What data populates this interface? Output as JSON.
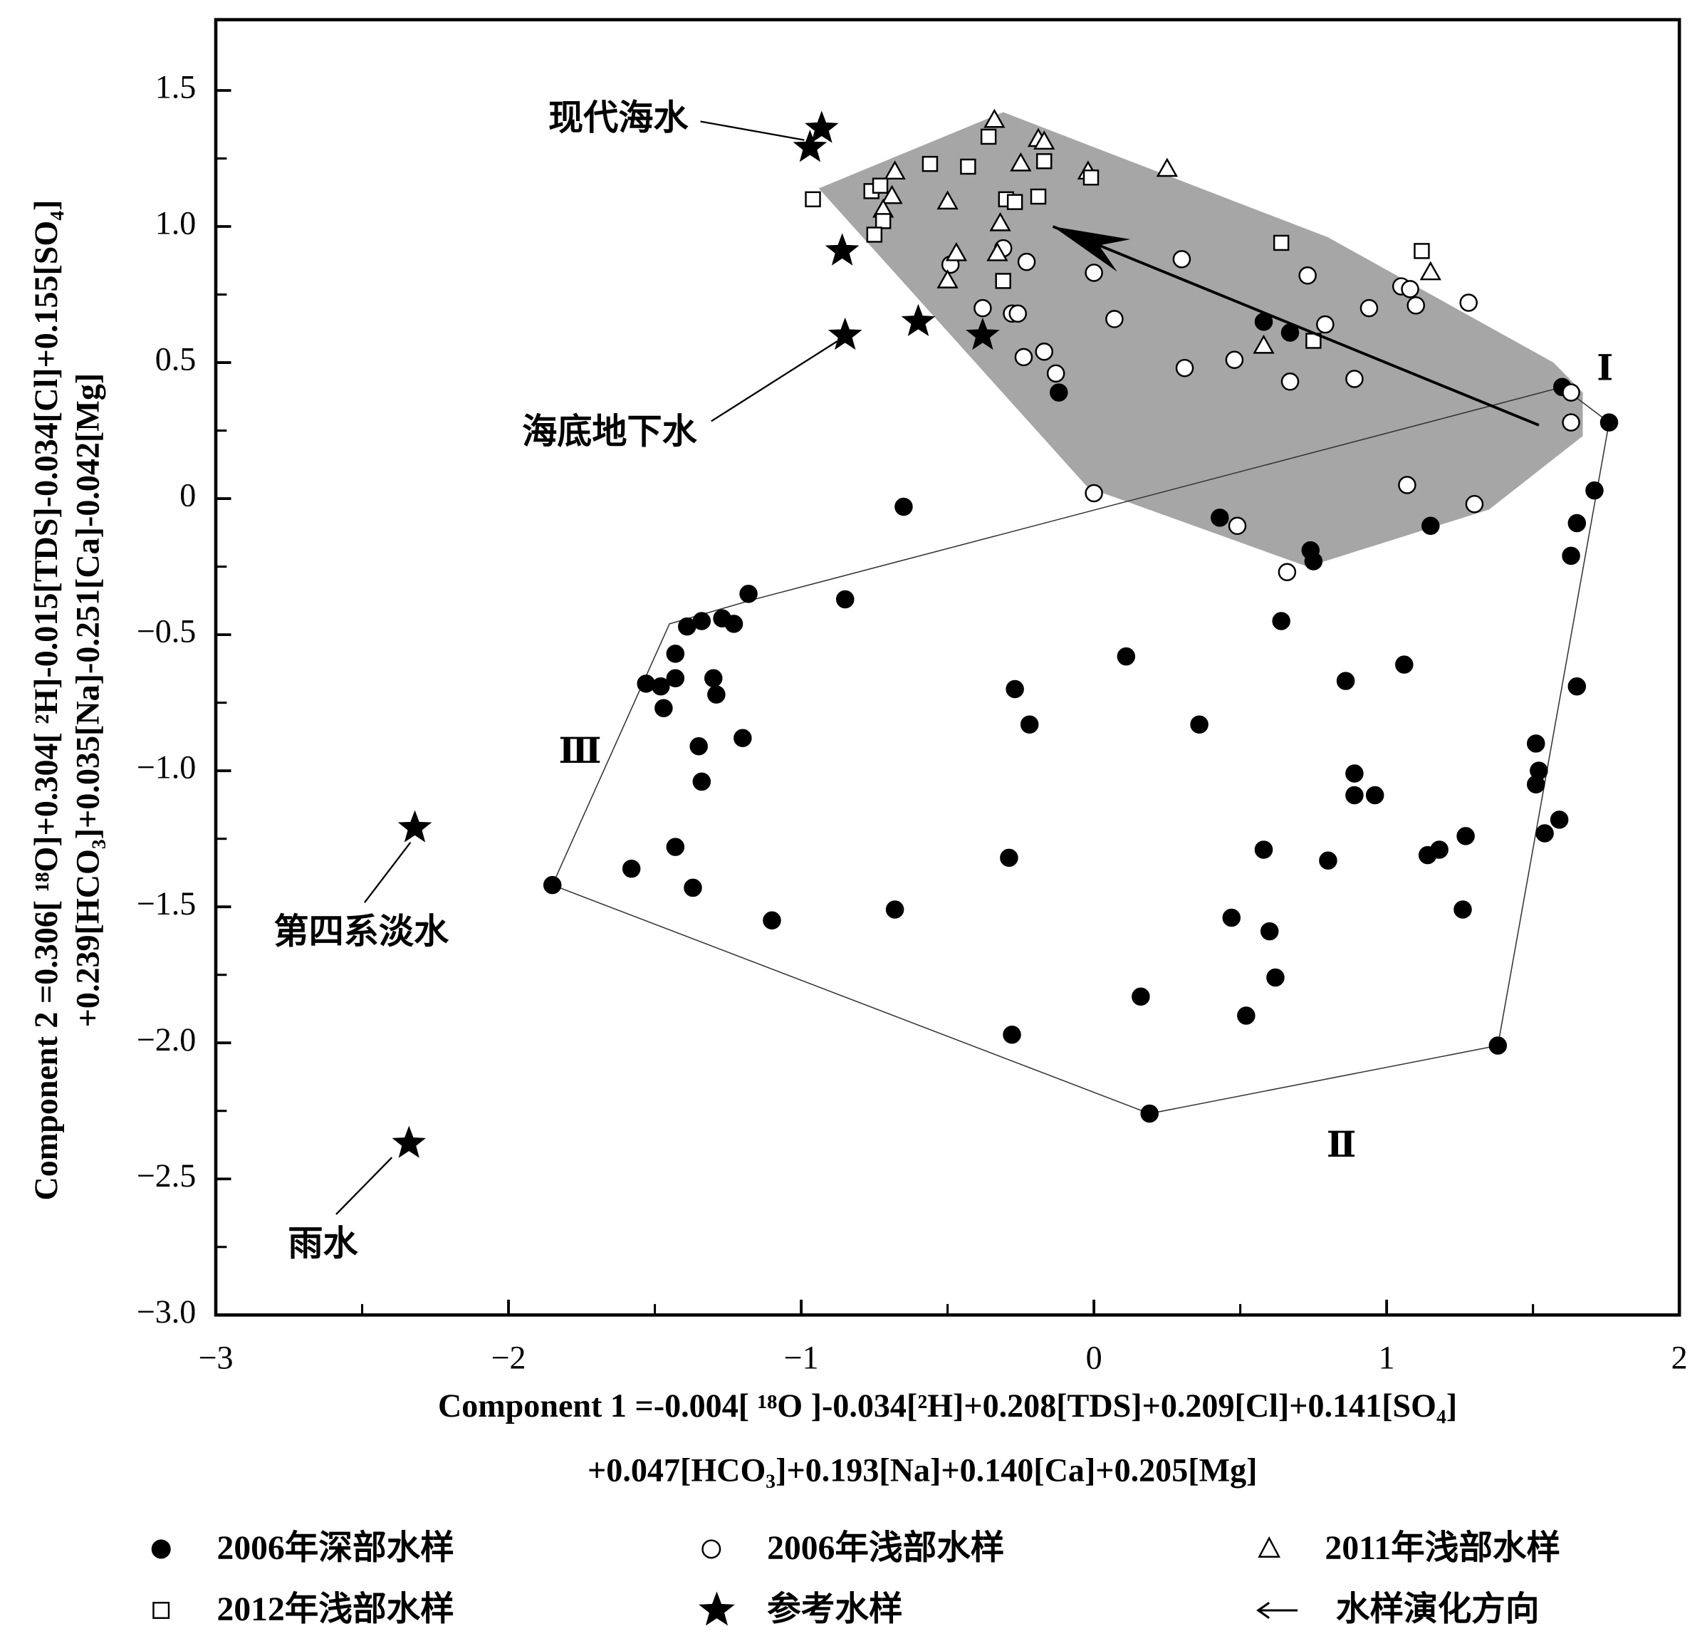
{
  "chart_data": {
    "type": "scatter",
    "x_label": [
      "Component 1 =-0.004[ ¹⁸O ]-0.034[²H]+0.208[TDS]+0.209[Cl]+0.141[SO₄]",
      "+0.047[HCO₃]+0.193[Na]+0.140[Ca]+0.205[Mg]"
    ],
    "y_label": [
      "Component 2 =0.306[ ¹⁸O]+0.304[ ²H]-0.015[TDS]-0.034[Cl]+0.155[SO₄]",
      "+0.239[HCO₃]+0.035[Na]-0.251[Ca]-0.042[Mg]"
    ],
    "xlim": [
      -3,
      2
    ],
    "ylim": [
      -3,
      1.76
    ],
    "xticks": [
      {
        "value": -3,
        "label": "−3"
      },
      {
        "value": -2,
        "label": "−2"
      },
      {
        "value": -1,
        "label": "−1"
      },
      0,
      1,
      2
    ],
    "yticks": [
      {
        "value": 1.5,
        "label": "1.5"
      },
      {
        "value": 1,
        "label": "1.0"
      },
      {
        "value": 0.5,
        "label": "0.5"
      },
      0,
      {
        "value": -0.5,
        "label": "−0.5"
      },
      {
        "value": -1,
        "label": "−1.0"
      },
      {
        "value": -1.5,
        "label": "−1.5"
      },
      {
        "value": -2,
        "label": "−2.0"
      },
      {
        "value": -2.5,
        "label": "−2.5"
      },
      {
        "value": -3,
        "label": "−3.0"
      }
    ],
    "xminor": [
      -2.5,
      -1.5,
      -0.5,
      0.5,
      1.5
    ],
    "yminor": [
      1.25,
      0.75,
      0.25,
      -0.25,
      -0.75,
      -1.25,
      -1.75,
      -2.25,
      -2.75
    ],
    "series": [
      {
        "name": "2006年深部水样",
        "marker": "circle",
        "filled": true,
        "color": "#000000",
        "x": [
          1.6,
          1.76,
          1.71,
          1.65,
          1.63,
          1.65,
          1.51,
          1.52,
          1.51,
          1.54,
          1.59,
          1.27,
          1.18,
          1.14,
          1.26,
          1.06,
          1.15,
          0.86,
          0.89,
          0.89,
          0.96,
          0.8,
          0.64,
          0.74,
          0.75,
          0.43,
          0.36,
          0.11,
          0.58,
          0.6,
          0.62,
          0.47,
          0.52,
          0.16,
          0.19,
          1.38,
          -0.27,
          -0.22,
          -0.29,
          -0.28,
          -0.68,
          -1.1,
          -0.85,
          -0.65,
          -0.12,
          0.58,
          0.67,
          -1.18,
          -1.27,
          -1.23,
          -1.34,
          -1.39,
          -1.43,
          -1.43,
          -1.53,
          -1.48,
          -1.47,
          -1.3,
          -1.29,
          -1.2,
          -1.35,
          -1.34,
          -1.43,
          -1.37,
          -1.58,
          -1.85
        ],
        "y": [
          0.41,
          0.28,
          0.03,
          -0.09,
          -0.21,
          -0.69,
          -0.9,
          -1.0,
          -1.05,
          -1.23,
          -1.18,
          -1.24,
          -1.29,
          -1.31,
          -1.51,
          -0.61,
          -0.1,
          -0.67,
          -1.01,
          -1.09,
          -1.09,
          -1.33,
          -0.45,
          -0.19,
          -0.23,
          -0.07,
          -0.83,
          -0.58,
          -1.29,
          -1.59,
          -1.76,
          -1.54,
          -1.9,
          -1.83,
          -2.26,
          -2.01,
          -0.7,
          -0.83,
          -1.32,
          -1.97,
          -1.51,
          -1.55,
          -0.37,
          -0.03,
          0.39,
          0.65,
          0.61,
          -0.35,
          -0.44,
          -0.46,
          -0.45,
          -0.47,
          -0.57,
          -0.66,
          -0.68,
          -0.69,
          -0.77,
          -0.66,
          -0.72,
          -0.88,
          -0.91,
          -1.04,
          -1.28,
          -1.43,
          -1.36,
          -1.42
        ]
      },
      {
        "name": "2006年浅部水样",
        "marker": "circle",
        "filled": false,
        "color": "#000000",
        "x": [
          1.63,
          1.63,
          1.3,
          1.07,
          0.66,
          0.49,
          0.0,
          0.31,
          0.48,
          0.67,
          0.89,
          0.79,
          0.94,
          0.73,
          1.05,
          1.08,
          1.1,
          1.28,
          0.3,
          0.0,
          0.07,
          -0.31,
          -0.23,
          -0.49,
          -0.38,
          -0.28,
          -0.26,
          -0.24,
          -0.17,
          -0.13
        ],
        "y": [
          0.39,
          0.28,
          -0.02,
          0.05,
          -0.27,
          -0.1,
          0.02,
          0.48,
          0.51,
          0.43,
          0.44,
          0.64,
          0.7,
          0.82,
          0.78,
          0.77,
          0.71,
          0.72,
          0.88,
          0.83,
          0.66,
          0.92,
          0.87,
          0.86,
          0.7,
          0.68,
          0.68,
          0.52,
          0.54,
          0.46
        ]
      },
      {
        "name": "2011年浅部水样",
        "marker": "triangle",
        "filled": false,
        "color": "#000000",
        "x": [
          -0.34,
          -0.19,
          -0.17,
          -0.25,
          -0.02,
          0.25,
          -0.68,
          -0.69,
          -0.72,
          -0.5,
          -0.32,
          -0.47,
          -0.33,
          -0.5,
          0.58,
          1.15
        ],
        "y": [
          1.39,
          1.32,
          1.31,
          1.23,
          1.2,
          1.21,
          1.2,
          1.11,
          1.06,
          1.09,
          1.01,
          0.9,
          0.9,
          0.8,
          0.56,
          0.83
        ]
      },
      {
        "name": "2012年浅部水样",
        "marker": "square",
        "filled": false,
        "color": "#000000",
        "x": [
          -0.96,
          -0.76,
          -0.73,
          -0.72,
          -0.75,
          -0.56,
          -0.43,
          -0.36,
          -0.17,
          -0.01,
          -0.3,
          -0.27,
          -0.19,
          -0.31,
          0.64,
          1.12,
          0.75
        ],
        "y": [
          1.1,
          1.13,
          1.15,
          1.02,
          0.97,
          1.23,
          1.22,
          1.33,
          1.24,
          1.18,
          1.1,
          1.09,
          1.11,
          0.8,
          0.94,
          0.91,
          0.58
        ]
      },
      {
        "name": "参考水样",
        "marker": "star",
        "filled": true,
        "color": "#000000",
        "x": [
          -0.93,
          -0.97,
          -0.86,
          -0.85,
          -0.6,
          -0.38,
          -2.32,
          -2.34
        ],
        "y": [
          1.36,
          1.29,
          0.91,
          0.6,
          0.65,
          0.6,
          -1.21,
          -2.37
        ]
      }
    ],
    "shaded_region": {
      "color": "#a6a6a6",
      "x": [
        -0.94,
        -0.31,
        0.8,
        1.57,
        1.67,
        1.67,
        1.35,
        0.73,
        -0.02
      ],
      "y": [
        1.14,
        1.42,
        0.96,
        0.5,
        0.39,
        0.23,
        -0.04,
        -0.25,
        0.04
      ]
    },
    "hull": {
      "x": [
        -1.85,
        -1.45,
        -1.16,
        1.6,
        1.76,
        1.38,
        0.19
      ],
      "y": [
        -1.42,
        -0.46,
        -0.37,
        0.41,
        0.28,
        -2.01,
        -2.26
      ]
    },
    "arrow": {
      "name": "水样演化方向",
      "x": [
        1.52,
        -0.14
      ],
      "y": [
        0.27,
        1.0
      ]
    },
    "annotations": [
      "现代海水",
      "海底地下水",
      "第四系淡水",
      "雨水"
    ],
    "region_labels": [
      "Ⅰ",
      "Ⅱ",
      "Ⅲ"
    ]
  }
}
